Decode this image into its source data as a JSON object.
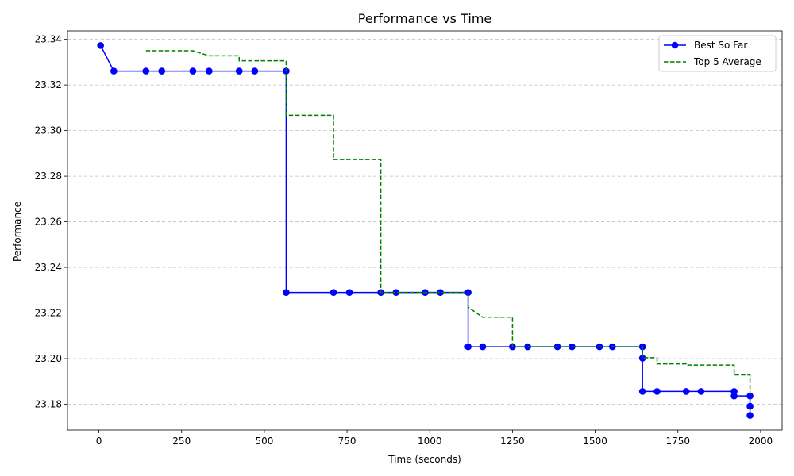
{
  "chart_data": {
    "type": "line",
    "title": "Performance vs Time",
    "xlabel": "Time (seconds)",
    "ylabel": "Performance",
    "xlim": [
      -95,
      2065
    ],
    "ylim": [
      23.1687,
      23.3437
    ],
    "xticks": [
      0,
      250,
      500,
      750,
      1000,
      1250,
      1500,
      1750,
      2000
    ],
    "xtick_labels": [
      "0",
      "250",
      "500",
      "750",
      "1000",
      "1250",
      "1500",
      "1750",
      "2000"
    ],
    "yticks": [
      23.18,
      23.2,
      23.22,
      23.24,
      23.26,
      23.28,
      23.3,
      23.32,
      23.34
    ],
    "ytick_labels": [
      "23.18",
      "23.20",
      "23.22",
      "23.24",
      "23.26",
      "23.28",
      "23.30",
      "23.32",
      "23.34"
    ],
    "grid": "y-dashed",
    "legend_position": "top-right",
    "series": [
      {
        "name": "Best So Far",
        "color": "#0000ff",
        "style": "solid-markers",
        "points": [
          [
            5,
            23.3373
          ],
          [
            45,
            23.3261
          ],
          [
            142,
            23.3261
          ],
          [
            190,
            23.3261
          ],
          [
            284,
            23.3261
          ],
          [
            333,
            23.3261
          ],
          [
            424,
            23.3261
          ],
          [
            471,
            23.3261
          ],
          [
            566,
            23.3261
          ],
          [
            566,
            23.229
          ],
          [
            709,
            23.229
          ],
          [
            757,
            23.229
          ],
          [
            852,
            23.229
          ],
          [
            898,
            23.229
          ],
          [
            986,
            23.229
          ],
          [
            1032,
            23.229
          ],
          [
            1116,
            23.229
          ],
          [
            1116,
            23.2052
          ],
          [
            1160,
            23.2052
          ],
          [
            1250,
            23.2052
          ],
          [
            1296,
            23.2052
          ],
          [
            1386,
            23.2052
          ],
          [
            1430,
            23.2052
          ],
          [
            1513,
            23.2052
          ],
          [
            1552,
            23.2052
          ],
          [
            1643,
            23.2052
          ],
          [
            1643,
            23.2002
          ],
          [
            1643,
            23.1856
          ],
          [
            1687,
            23.1856
          ],
          [
            1775,
            23.1856
          ],
          [
            1820,
            23.1856
          ],
          [
            1920,
            23.1856
          ],
          [
            1920,
            23.1836
          ],
          [
            1968,
            23.1836
          ],
          [
            1968,
            23.1791
          ],
          [
            1968,
            23.1751
          ]
        ]
      },
      {
        "name": "Top 5 Average",
        "color": "#008000",
        "style": "dashed",
        "points": [
          [
            142,
            23.335
          ],
          [
            284,
            23.335
          ],
          [
            333,
            23.3328
          ],
          [
            424,
            23.3328
          ],
          [
            424,
            23.3306
          ],
          [
            566,
            23.3306
          ],
          [
            566,
            23.3067
          ],
          [
            709,
            23.3067
          ],
          [
            709,
            23.2873
          ],
          [
            852,
            23.2873
          ],
          [
            852,
            23.229
          ],
          [
            1116,
            23.229
          ],
          [
            1116,
            23.2225
          ],
          [
            1160,
            23.2182
          ],
          [
            1250,
            23.2182
          ],
          [
            1250,
            23.2052
          ],
          [
            1643,
            23.2052
          ],
          [
            1643,
            23.2004
          ],
          [
            1687,
            23.2004
          ],
          [
            1687,
            23.1977
          ],
          [
            1775,
            23.1977
          ],
          [
            1775,
            23.1972
          ],
          [
            1920,
            23.1972
          ],
          [
            1920,
            23.1929
          ],
          [
            1968,
            23.1929
          ],
          [
            1968,
            23.1836
          ]
        ]
      }
    ]
  }
}
